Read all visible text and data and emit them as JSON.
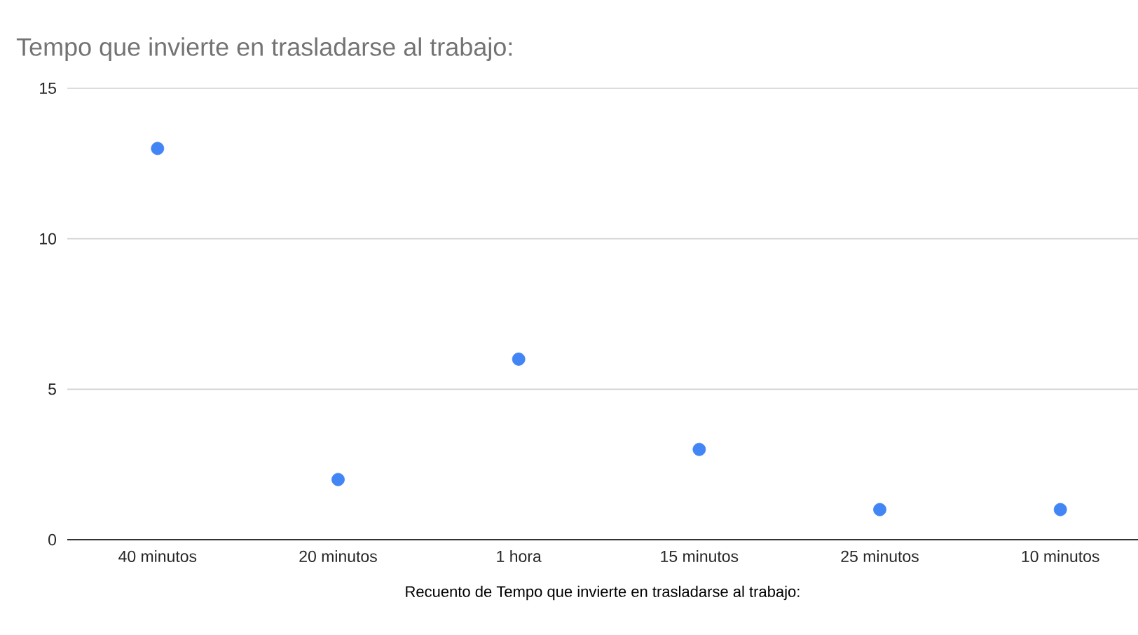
{
  "chart_data": {
    "type": "scatter",
    "title": "Tempo que invierte en trasladarse al trabajo:",
    "xlabel": "Recuento de Tempo que invierte en trasladarse al trabajo:",
    "categories": [
      "40 minutos",
      "20 minutos",
      "1 hora",
      "15 minutos",
      "25 minutos",
      "10 minutos"
    ],
    "values": [
      13,
      2,
      6,
      3,
      1,
      1
    ],
    "color": "#4285f4",
    "ylim": [
      0,
      15
    ],
    "yticks": [
      0,
      5,
      10,
      15
    ],
    "grid": "y"
  }
}
